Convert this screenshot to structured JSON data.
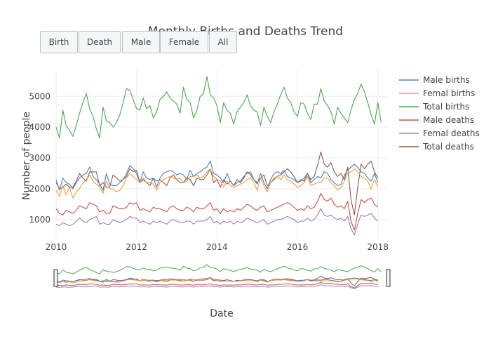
{
  "buttons": [
    "Birth",
    "Death",
    "Male",
    "Female",
    "All"
  ],
  "colors": {
    "male_births": "#4e7fb3",
    "femal_births": "#f39c3f",
    "total_births": "#4aa84a",
    "male_deaths": "#c9504b",
    "femal_deaths": "#9b7fc0",
    "total_deaths": "#8c5a52",
    "grid": "#eeeeee",
    "button_border": "#b8c2cc",
    "button_bg": "#f4f6f8"
  },
  "chart_data": {
    "type": "line",
    "title": "Monthly Births and Deaths Trend",
    "xlabel": "Date",
    "ylabel": "Number of people",
    "xlim": [
      2010.0,
      2018.25
    ],
    "ylim": [
      380,
      5850
    ],
    "xticks": [
      2010,
      2012,
      2014,
      2016,
      2018
    ],
    "yticks": [
      1000,
      2000,
      3000,
      4000,
      5000
    ],
    "grid": true,
    "legend": "right",
    "rangeslider": true,
    "x_start": 2010.0,
    "x_step_months": 1,
    "series": [
      {
        "name": "Male births",
        "color_key": "male_births",
        "values": [
          2300,
          1950,
          2350,
          2200,
          2150,
          2000,
          2200,
          2350,
          2450,
          2500,
          2700,
          2400,
          2300,
          2150,
          1950,
          2500,
          2150,
          2100,
          2100,
          2200,
          2300,
          2500,
          2750,
          2650,
          2500,
          2200,
          2550,
          2350,
          2300,
          2350,
          2050,
          2350,
          2500,
          2550,
          2600,
          2550,
          2450,
          2500,
          2450,
          2300,
          2600,
          2400,
          2500,
          2550,
          2650,
          2700,
          2900,
          2500,
          2450,
          2350,
          2200,
          2500,
          2250,
          2100,
          2200,
          2250,
          2400,
          2500,
          2550,
          2300,
          2150,
          2500,
          2200,
          2000,
          2300,
          2500,
          2550,
          2500,
          2600,
          2400,
          2350,
          2300,
          2200,
          2250,
          2350,
          2500,
          2200,
          2300,
          2400,
          2350,
          2550,
          2500,
          2300,
          2200,
          2100,
          2150,
          2450,
          2600,
          2700,
          2800,
          2700,
          2550,
          2500,
          2350,
          2250,
          2500,
          2200
        ]
      },
      {
        "name": "Femal births",
        "color_key": "femal_births",
        "values": [
          1950,
          1750,
          2100,
          1800,
          2050,
          1700,
          1900,
          2000,
          2200,
          2300,
          2450,
          2250,
          2150,
          2050,
          1850,
          2250,
          2000,
          2000,
          1900,
          1950,
          2100,
          2350,
          2500,
          2400,
          2300,
          2200,
          2350,
          2200,
          2200,
          2150,
          1950,
          2200,
          2300,
          2350,
          2400,
          2350,
          2300,
          2350,
          2200,
          2250,
          2400,
          2400,
          2450,
          2350,
          2400,
          2550,
          2650,
          2400,
          2300,
          2250,
          2050,
          2250,
          2100,
          2050,
          2100,
          2150,
          2200,
          2300,
          2350,
          2200,
          1950,
          2350,
          2100,
          1900,
          2200,
          2350,
          2400,
          2300,
          2450,
          2300,
          2250,
          2150,
          2050,
          2100,
          2200,
          2400,
          2100,
          2150,
          2200,
          2200,
          2350,
          2350,
          2200,
          2100,
          1950,
          2050,
          2250,
          2500,
          2550,
          2650,
          2550,
          2400,
          2350,
          2250,
          2000,
          2300,
          2050
        ]
      },
      {
        "name": "Total births",
        "color_key": "total_births",
        "values": [
          4000,
          3650,
          4550,
          4050,
          3900,
          3700,
          4050,
          4450,
          4800,
          5100,
          4600,
          4350,
          3950,
          3650,
          4650,
          4200,
          4150,
          4000,
          4150,
          4400,
          4800,
          5250,
          5200,
          4900,
          4600,
          4550,
          4950,
          4600,
          4700,
          4300,
          4500,
          4900,
          5000,
          5150,
          4950,
          4850,
          4750,
          4450,
          5300,
          4900,
          4800,
          4300,
          4550,
          5000,
          5100,
          5650,
          5050,
          4950,
          4700,
          4150,
          4800,
          4550,
          4450,
          4100,
          4500,
          4650,
          4800,
          5050,
          4700,
          4550,
          4500,
          4050,
          4650,
          4350,
          4150,
          4500,
          4750,
          5050,
          5300,
          4950,
          4800,
          4500,
          4350,
          4800,
          4750,
          4450,
          4250,
          4750,
          4750,
          5250,
          4850,
          4700,
          4500,
          4100,
          4650,
          4450,
          4300,
          4150,
          4550,
          4900,
          5100,
          5400,
          5150,
          4800,
          4400,
          4100,
          4800,
          4150
        ]
      },
      {
        "name": "Male deaths",
        "color_key": "male_deaths",
        "values": [
          1350,
          1200,
          1150,
          1300,
          1250,
          1200,
          1300,
          1450,
          1400,
          1350,
          1550,
          1500,
          1450,
          1250,
          1300,
          1200,
          1200,
          1450,
          1400,
          1350,
          1350,
          1400,
          1550,
          1500,
          1550,
          1300,
          1350,
          1300,
          1250,
          1400,
          1350,
          1350,
          1300,
          1250,
          1400,
          1450,
          1350,
          1300,
          1300,
          1400,
          1350,
          1250,
          1400,
          1350,
          1350,
          1450,
          1550,
          1300,
          1350,
          1200,
          1350,
          1250,
          1300,
          1250,
          1350,
          1300,
          1400,
          1500,
          1450,
          1350,
          1300,
          1400,
          1450,
          1250,
          1300,
          1350,
          1400,
          1450,
          1500,
          1550,
          1500,
          1400,
          1300,
          1350,
          1300,
          1450,
          1350,
          1400,
          1600,
          1850,
          1650,
          1600,
          1700,
          1500,
          1400,
          1450,
          1350,
          1600,
          950,
          650,
          1200,
          1650,
          1550,
          1650,
          1700,
          1500,
          1400
        ]
      },
      {
        "name": "Femal deaths",
        "color_key": "femal_deaths",
        "values": [
          850,
          800,
          900,
          850,
          800,
          850,
          950,
          1050,
          950,
          900,
          1000,
          1050,
          1100,
          850,
          900,
          850,
          850,
          1000,
          950,
          900,
          950,
          1000,
          1100,
          1050,
          1050,
          900,
          950,
          900,
          850,
          950,
          900,
          950,
          900,
          850,
          950,
          1000,
          950,
          900,
          900,
          950,
          950,
          850,
          950,
          950,
          950,
          1000,
          1100,
          900,
          950,
          850,
          950,
          900,
          950,
          850,
          950,
          900,
          950,
          1050,
          1000,
          950,
          900,
          950,
          1000,
          850,
          900,
          950,
          1000,
          1000,
          1050,
          1100,
          1050,
          1000,
          900,
          950,
          950,
          1050,
          950,
          1000,
          1150,
          1350,
          1150,
          1100,
          1150,
          1050,
          1000,
          1050,
          950,
          1100,
          700,
          500,
          850,
          1150,
          1100,
          1150,
          1200,
          1050,
          950
        ]
      },
      {
        "name": "Total deaths",
        "color_key": "total_deaths",
        "values": [
          2200,
          2000,
          2050,
          2150,
          2050,
          2050,
          2250,
          2500,
          2350,
          2250,
          2550,
          2550,
          2550,
          2100,
          2200,
          2050,
          2050,
          2450,
          2350,
          2250,
          2300,
          2400,
          2650,
          2550,
          2600,
          2200,
          2300,
          2200,
          2100,
          2350,
          2250,
          2300,
          2200,
          2100,
          2350,
          2450,
          2300,
          2200,
          2200,
          2350,
          2300,
          2100,
          2350,
          2300,
          2300,
          2450,
          2650,
          2200,
          2300,
          2050,
          2300,
          2150,
          2250,
          2100,
          2300,
          2200,
          2350,
          2550,
          2450,
          2300,
          2200,
          2350,
          2450,
          2100,
          2200,
          2300,
          2400,
          2450,
          2550,
          2650,
          2550,
          2400,
          2200,
          2300,
          2250,
          2500,
          2300,
          2400,
          2750,
          3200,
          2800,
          2700,
          2850,
          2550,
          2400,
          2500,
          2300,
          2700,
          1650,
          1150,
          2050,
          2800,
          2650,
          2800,
          2900,
          2550,
          2350
        ]
      }
    ]
  }
}
